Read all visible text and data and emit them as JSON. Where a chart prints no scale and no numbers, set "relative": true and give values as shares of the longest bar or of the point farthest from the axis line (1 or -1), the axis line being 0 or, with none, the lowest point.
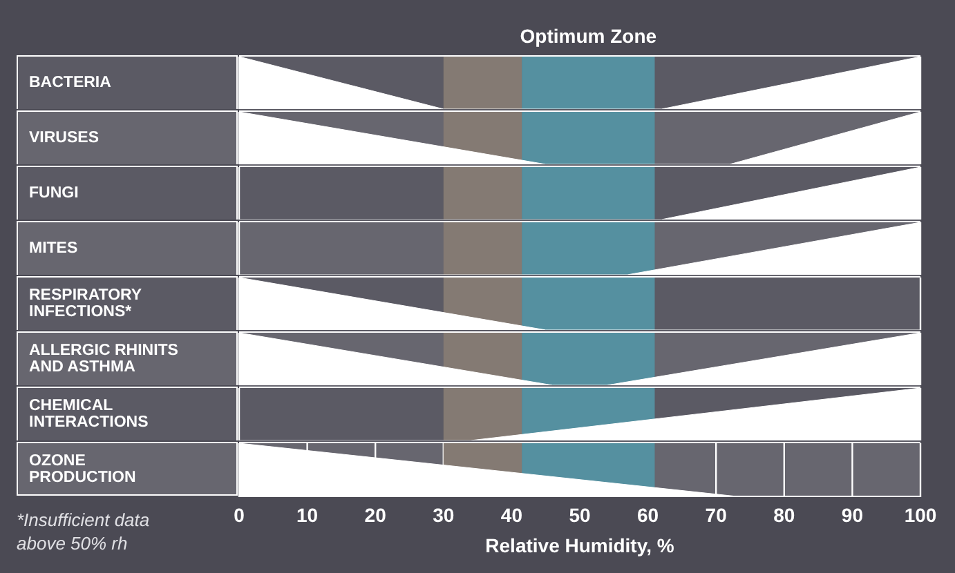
{
  "chart_data": [
    {
      "type": "area",
      "ylabel": "BACTERIA",
      "x": [
        0,
        30,
        62,
        100
      ],
      "values": [
        1,
        0,
        0,
        1
      ],
      "color": "#ffffff",
      "relative": true,
      "xlim": [
        0,
        100
      ],
      "xticks": [
        0,
        10,
        20,
        30,
        40,
        50,
        60,
        70,
        80,
        90,
        100
      ],
      "tick_labels": false,
      "grid": "x",
      "legend": false,
      "bands": [
        {
          "axis": "x",
          "from": 30,
          "to": 41.5,
          "color": "#847a73"
        },
        {
          "axis": "x",
          "from": 41.5,
          "to": 61,
          "color": "#5590a0",
          "label": "Optimum Zone"
        }
      ]
    },
    {
      "type": "area",
      "ylabel": "VIRUSES",
      "x": [
        0,
        45,
        72,
        100
      ],
      "values": [
        1,
        0,
        0,
        1
      ],
      "color": "#ffffff",
      "relative": true,
      "xlim": [
        0,
        100
      ],
      "xticks": [
        0,
        10,
        20,
        30,
        40,
        50,
        60,
        70,
        80,
        90,
        100
      ],
      "tick_labels": false,
      "grid": "x",
      "legend": false,
      "bands": [
        {
          "axis": "x",
          "from": 30,
          "to": 41.5,
          "color": "#847a73"
        },
        {
          "axis": "x",
          "from": 41.5,
          "to": 61,
          "color": "#5590a0"
        }
      ]
    },
    {
      "type": "area",
      "ylabel": "FUNGI",
      "x": [
        0,
        62,
        100
      ],
      "values": [
        0,
        0,
        1
      ],
      "color": "#ffffff",
      "relative": true,
      "xlim": [
        0,
        100
      ],
      "xticks": [
        0,
        10,
        20,
        30,
        40,
        50,
        60,
        70,
        80,
        90,
        100
      ],
      "tick_labels": false,
      "grid": "x",
      "legend": false,
      "bands": [
        {
          "axis": "x",
          "from": 30,
          "to": 41.5,
          "color": "#847a73"
        },
        {
          "axis": "x",
          "from": 41.5,
          "to": 61,
          "color": "#5590a0"
        }
      ]
    },
    {
      "type": "area",
      "ylabel": "MITES",
      "x": [
        0,
        57,
        100
      ],
      "values": [
        0,
        0,
        1
      ],
      "color": "#ffffff",
      "relative": true,
      "xlim": [
        0,
        100
      ],
      "xticks": [
        0,
        10,
        20,
        30,
        40,
        50,
        60,
        70,
        80,
        90,
        100
      ],
      "tick_labels": false,
      "grid": "x",
      "legend": false,
      "bands": [
        {
          "axis": "x",
          "from": 30,
          "to": 41.5,
          "color": "#847a73"
        },
        {
          "axis": "x",
          "from": 41.5,
          "to": 61,
          "color": "#5590a0"
        }
      ]
    },
    {
      "type": "area",
      "ylabel": "RESPIRATORY\nINFECTIONS*",
      "x": [
        0,
        45,
        100
      ],
      "values": [
        1,
        0,
        0
      ],
      "color": "#ffffff",
      "relative": true,
      "xlim": [
        0,
        100
      ],
      "xticks": [
        0,
        10,
        20,
        30,
        40,
        50,
        60,
        70,
        80,
        90,
        100
      ],
      "tick_labels": false,
      "grid": "x",
      "legend": false,
      "bands": [
        {
          "axis": "x",
          "from": 30,
          "to": 41.5,
          "color": "#847a73"
        },
        {
          "axis": "x",
          "from": 41.5,
          "to": 61,
          "color": "#5590a0"
        }
      ]
    },
    {
      "type": "area",
      "ylabel": "ALLERGIC RHINITS\nAND ASTHMA",
      "x": [
        0,
        46,
        54,
        100
      ],
      "values": [
        1,
        0,
        0,
        1
      ],
      "color": "#ffffff",
      "relative": true,
      "xlim": [
        0,
        100
      ],
      "xticks": [
        0,
        10,
        20,
        30,
        40,
        50,
        60,
        70,
        80,
        90,
        100
      ],
      "tick_labels": false,
      "grid": "x",
      "legend": false,
      "bands": [
        {
          "axis": "x",
          "from": 30,
          "to": 41.5,
          "color": "#847a73"
        },
        {
          "axis": "x",
          "from": 41.5,
          "to": 61,
          "color": "#5590a0"
        }
      ]
    },
    {
      "type": "area",
      "ylabel": "CHEMICAL\nINTERACTIONS",
      "x": [
        0,
        34,
        100
      ],
      "values": [
        0,
        0,
        1
      ],
      "color": "#ffffff",
      "relative": true,
      "xlim": [
        0,
        100
      ],
      "xticks": [
        0,
        10,
        20,
        30,
        40,
        50,
        60,
        70,
        80,
        90,
        100
      ],
      "tick_labels": false,
      "grid": "x",
      "legend": false,
      "bands": [
        {
          "axis": "x",
          "from": 30,
          "to": 41.5,
          "color": "#847a73"
        },
        {
          "axis": "x",
          "from": 41.5,
          "to": 61,
          "color": "#5590a0"
        }
      ]
    },
    {
      "type": "area",
      "ylabel": "OZONE\nPRODUCTION",
      "x": [
        0,
        74,
        100
      ],
      "values": [
        1,
        0,
        0
      ],
      "color": "#ffffff",
      "relative": true,
      "xlim": [
        0,
        100
      ],
      "xticks": [
        0,
        10,
        20,
        30,
        40,
        50,
        60,
        70,
        80,
        90,
        100
      ],
      "tick_labels": "x",
      "grid": "x",
      "legend": false,
      "xlabel": "Relative Humidity, %",
      "annotations": [
        "*Insufficient data above 50% rh"
      ],
      "bands": [
        {
          "axis": "x",
          "from": 30,
          "to": 41.5,
          "color": "#847a73"
        },
        {
          "axis": "x",
          "from": 41.5,
          "to": 61,
          "color": "#5590a0"
        }
      ]
    }
  ]
}
